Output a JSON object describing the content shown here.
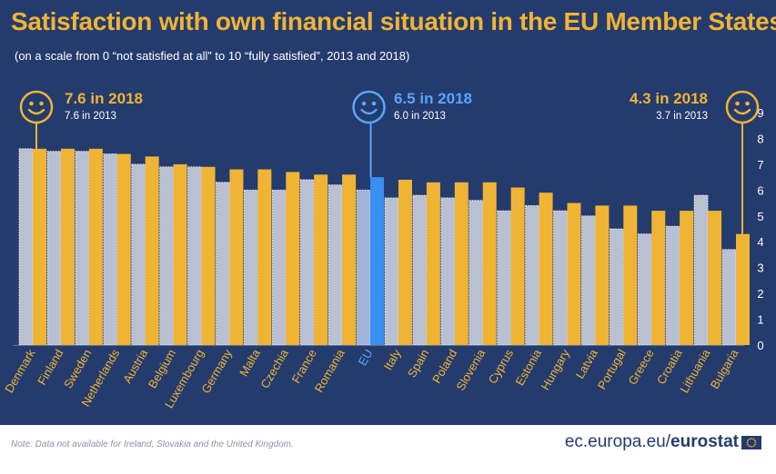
{
  "title": "Satisfaction with own financial situation in the EU Member States",
  "subtitle": "(on a scale from 0 “not satisfied at all” to 10 “fully satisfied”, 2013 and 2018)",
  "colors": {
    "background": "#243b6d",
    "bar_2018": "#f0b434",
    "bar_2013": "#b9c0d2",
    "eu_2018": "#3a8ff5",
    "eu_2013": "#9fb3d6",
    "accent_eu": "#58a6ff",
    "accent_gold": "#f0b434"
  },
  "callouts": [
    {
      "id": "denmark",
      "icon": "smiley-icon",
      "headline": "7.6 in 2018",
      "sub": "7.6 in 2013"
    },
    {
      "id": "eu",
      "icon": "smiley-icon",
      "headline": "6.5 in 2018",
      "sub": "6.0 in 2013"
    },
    {
      "id": "bulgaria",
      "icon": "smiley-icon",
      "headline": "4.3 in 2018",
      "sub": "3.7 in 2013"
    }
  ],
  "footer": {
    "note": "Note: Data not available for Ireland, Slovakia and the United Kingdom.",
    "brand_prefix": "ec.europa.eu/",
    "brand_bold": "eurostat",
    "flag_icon": "eu-flag-icon"
  },
  "chart_data": {
    "type": "bar",
    "categories": [
      "Denmark",
      "Finland",
      "Sweden",
      "Netherlands",
      "Austria",
      "Belgium",
      "Luxembourg",
      "Germany",
      "Malta",
      "Czechia",
      "France",
      "Romania",
      "EU",
      "Italy",
      "Spain",
      "Poland",
      "Slovenia",
      "Cyprus",
      "Estonia",
      "Hungary",
      "Latvia",
      "Portugal",
      "Greece",
      "Croatia",
      "Lithuania",
      "Bulgaria"
    ],
    "series": [
      {
        "name": "2013",
        "values": [
          7.6,
          7.5,
          7.5,
          7.4,
          7.0,
          6.9,
          6.9,
          6.3,
          6.0,
          6.0,
          6.4,
          6.2,
          6.0,
          5.7,
          5.8,
          5.7,
          5.6,
          5.2,
          5.4,
          5.2,
          5.0,
          4.5,
          4.3,
          4.6,
          5.8,
          3.7
        ]
      },
      {
        "name": "2018",
        "values": [
          7.6,
          7.6,
          7.6,
          7.4,
          7.3,
          7.0,
          6.9,
          6.8,
          6.8,
          6.7,
          6.6,
          6.6,
          6.5,
          6.4,
          6.3,
          6.3,
          6.3,
          6.1,
          5.9,
          5.5,
          5.4,
          5.4,
          5.2,
          5.2,
          5.2,
          4.3
        ]
      }
    ],
    "highlight_category": "EU",
    "ylim": [
      0,
      9
    ],
    "yticks": [
      "0",
      "1",
      "2",
      "3",
      "4",
      "5",
      "6",
      "7",
      "8",
      "9"
    ],
    "y_axis_position": "right",
    "grid": false
  }
}
